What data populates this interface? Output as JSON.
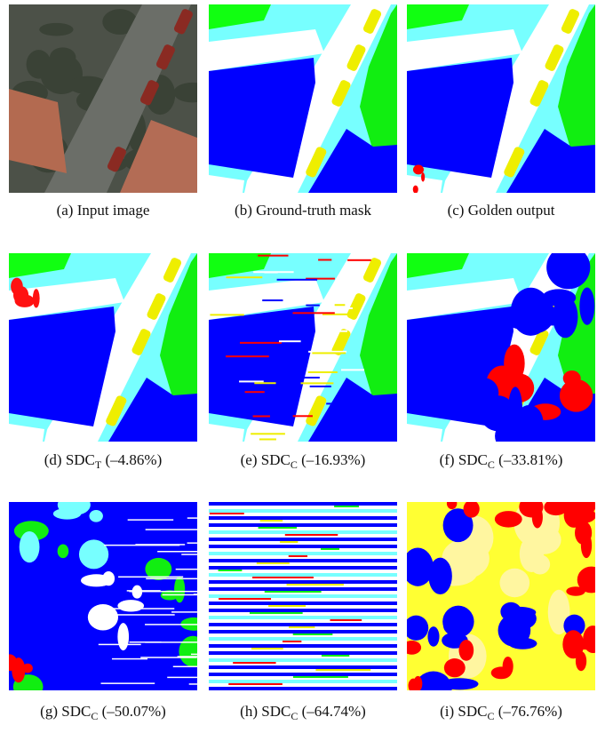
{
  "panels": [
    {
      "label": "(a)",
      "text": "Input image"
    },
    {
      "label": "(b)",
      "text": "Ground-truth mask"
    },
    {
      "label": "(c)",
      "text": "Golden output"
    },
    {
      "label": "(d)",
      "text": "SDC",
      "subscript": "T",
      "value": "(–4.86%)"
    },
    {
      "label": "(e)",
      "text": "SDC",
      "subscript": "C",
      "value": "(–16.93%)"
    },
    {
      "label": "(f)",
      "text": "SDC",
      "subscript": "C",
      "value": "(–33.81%)"
    },
    {
      "label": "(g)",
      "text": "SDC",
      "subscript": "C",
      "value": "(–50.07%)"
    },
    {
      "label": "(h)",
      "text": "SDC",
      "subscript": "C",
      "value": "(–64.74%)"
    },
    {
      "label": "(i)",
      "text": "SDC",
      "subscript": "C",
      "value": "(–76.76%)"
    }
  ]
}
